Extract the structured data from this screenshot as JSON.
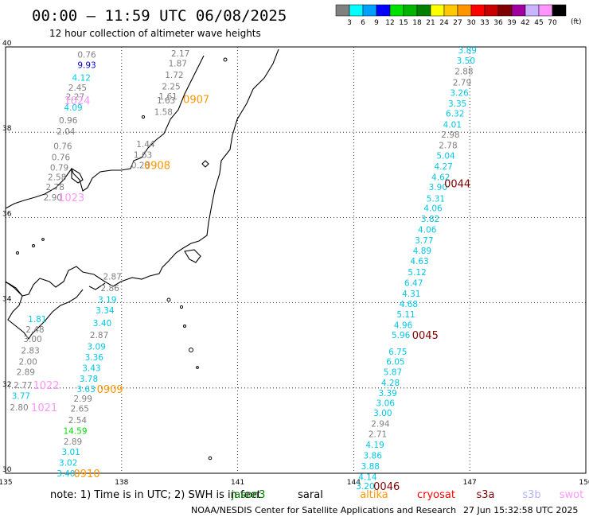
{
  "title": "00:00 – 11:59 UTC 06/08/2025",
  "subtitle": "12 hour collection of altimeter wave heights",
  "note": "note: 1) Time is in UTC; 2) SWH is in feet",
  "credit": "NOAA/NESDIS Center for Satellite Applications and Research",
  "generated": "27 Jun 15:32:58 UTC 2025",
  "colorbar": {
    "unit": "(ft)",
    "ticks": [
      "3",
      "6",
      "9",
      "12",
      "15",
      "18",
      "21",
      "24",
      "27",
      "30",
      "33",
      "36",
      "39",
      "42",
      "45",
      "70"
    ],
    "colors": [
      "#808080",
      "#00ffff",
      "#00a0ff",
      "#0000ff",
      "#00e000",
      "#00b400",
      "#008000",
      "#ffff00",
      "#ffc800",
      "#ff9600",
      "#ff0000",
      "#c80000",
      "#800000",
      "#a000a0",
      "#c8b4ff",
      "#ff96ff",
      "#000000"
    ]
  },
  "satellites": [
    {
      "name": "jason3",
      "color": "#008000"
    },
    {
      "name": "saral",
      "color": "#000000"
    },
    {
      "name": "altika",
      "color": "#ff9600"
    },
    {
      "name": "cryosat",
      "color": "#ff0000"
    },
    {
      "name": "s3a",
      "color": "#800000"
    },
    {
      "name": "s3b",
      "color": "#b4b4ff"
    },
    {
      "name": "swot",
      "color": "#ff96ff"
    }
  ],
  "chart_data": {
    "type": "scatter",
    "title": "00:00 – 11:59 UTC 06/08/2025",
    "subtitle": "12 hour collection of altimeter wave heights",
    "xlim": [
      135,
      150
    ],
    "ylim": [
      30,
      40
    ],
    "xticks": [
      "135",
      "138",
      "141",
      "144",
      "147",
      "150"
    ],
    "yticks": [
      "40",
      "38",
      "36",
      "34",
      "32",
      "30"
    ],
    "grid": true,
    "points": [
      {
        "lon": 137.1,
        "lat": 39.82,
        "v": "0.76",
        "c": "#808080"
      },
      {
        "lon": 137.1,
        "lat": 39.58,
        "v": "9.93",
        "c": "#0000c8"
      },
      {
        "lon": 136.96,
        "lat": 39.28,
        "v": "4.12",
        "c": "#00c8e6"
      },
      {
        "lon": 136.86,
        "lat": 39.05,
        "v": "2.45",
        "c": "#808080"
      },
      {
        "lon": 136.8,
        "lat": 38.83,
        "v": "2.27",
        "c": "#808080"
      },
      {
        "lon": 136.75,
        "lat": 38.58,
        "v": "4.09",
        "c": "#00c8e6"
      },
      {
        "lon": 136.62,
        "lat": 38.28,
        "v": "0.96",
        "c": "#808080"
      },
      {
        "lon": 136.56,
        "lat": 38.02,
        "v": "2.04",
        "c": "#808080"
      },
      {
        "lon": 136.48,
        "lat": 37.68,
        "v": "0.76",
        "c": "#808080"
      },
      {
        "lon": 136.43,
        "lat": 37.42,
        "v": "0.76",
        "c": "#808080"
      },
      {
        "lon": 136.39,
        "lat": 37.17,
        "v": "0.79",
        "c": "#808080"
      },
      {
        "lon": 136.33,
        "lat": 36.95,
        "v": "2.58",
        "c": "#808080"
      },
      {
        "lon": 136.28,
        "lat": 36.72,
        "v": "2.78",
        "c": "#808080"
      },
      {
        "lon": 136.22,
        "lat": 36.47,
        "v": "2.90",
        "c": "#808080"
      },
      {
        "lon": 139.52,
        "lat": 39.85,
        "v": "2.17",
        "c": "#808080"
      },
      {
        "lon": 139.45,
        "lat": 39.62,
        "v": "1.87",
        "c": "#808080"
      },
      {
        "lon": 139.36,
        "lat": 39.35,
        "v": "1.72",
        "c": "#808080"
      },
      {
        "lon": 139.28,
        "lat": 39.08,
        "v": "2.25",
        "c": "#808080"
      },
      {
        "lon": 139.2,
        "lat": 38.84,
        "v": "1.61",
        "c": "#808080"
      },
      {
        "lon": 139.15,
        "lat": 38.75,
        "v": "1.63",
        "c": "#808080"
      },
      {
        "lon": 139.08,
        "lat": 38.48,
        "v": "1.58",
        "c": "#808080"
      },
      {
        "lon": 138.62,
        "lat": 37.72,
        "v": "1.44",
        "c": "#808080"
      },
      {
        "lon": 138.55,
        "lat": 37.47,
        "v": "1.63",
        "c": "#808080"
      },
      {
        "lon": 138.49,
        "lat": 37.23,
        "v": "0.28",
        "c": "#808080"
      },
      {
        "lon": 137.76,
        "lat": 34.62,
        "v": "2.87",
        "c": "#808080"
      },
      {
        "lon": 137.7,
        "lat": 34.35,
        "v": "2.86",
        "c": "#808080"
      },
      {
        "lon": 137.63,
        "lat": 34.08,
        "v": "3.19",
        "c": "#00c8e6"
      },
      {
        "lon": 137.57,
        "lat": 33.82,
        "v": "3.34",
        "c": "#00c8e6"
      },
      {
        "lon": 137.5,
        "lat": 33.53,
        "v": "3.40",
        "c": "#00c8e6"
      },
      {
        "lon": 137.42,
        "lat": 33.25,
        "v": "2.87",
        "c": "#808080"
      },
      {
        "lon": 137.35,
        "lat": 32.98,
        "v": "3.09",
        "c": "#00c8e6"
      },
      {
        "lon": 137.29,
        "lat": 32.72,
        "v": "3.36",
        "c": "#00c8e6"
      },
      {
        "lon": 137.22,
        "lat": 32.47,
        "v": "3.43",
        "c": "#00c8e6"
      },
      {
        "lon": 137.15,
        "lat": 32.22,
        "v": "3.78",
        "c": "#00c8e6"
      },
      {
        "lon": 137.08,
        "lat": 31.98,
        "v": "3.63",
        "c": "#00c8e6"
      },
      {
        "lon": 137.0,
        "lat": 31.75,
        "v": "2.99",
        "c": "#808080"
      },
      {
        "lon": 136.92,
        "lat": 31.52,
        "v": "2.65",
        "c": "#808080"
      },
      {
        "lon": 136.86,
        "lat": 31.25,
        "v": "2.54",
        "c": "#808080"
      },
      {
        "lon": 136.8,
        "lat": 31.0,
        "v": "14.59",
        "c": "#00dc00"
      },
      {
        "lon": 136.74,
        "lat": 30.75,
        "v": "2.89",
        "c": "#808080"
      },
      {
        "lon": 136.69,
        "lat": 30.5,
        "v": "3.01",
        "c": "#00c8e6"
      },
      {
        "lon": 136.62,
        "lat": 30.25,
        "v": "3.02",
        "c": "#00c8e6"
      },
      {
        "lon": 136.56,
        "lat": 30.0,
        "v": "3.40",
        "c": "#00c8e6"
      },
      {
        "lon": 135.82,
        "lat": 33.62,
        "v": "1.81",
        "c": "#00c8e6"
      },
      {
        "lon": 135.76,
        "lat": 33.38,
        "v": "2.48",
        "c": "#808080"
      },
      {
        "lon": 135.7,
        "lat": 33.15,
        "v": "3.00",
        "c": "#808080"
      },
      {
        "lon": 135.64,
        "lat": 32.88,
        "v": "2.83",
        "c": "#808080"
      },
      {
        "lon": 135.58,
        "lat": 32.62,
        "v": "2.00",
        "c": "#808080"
      },
      {
        "lon": 135.52,
        "lat": 32.38,
        "v": "2.89",
        "c": "#808080"
      },
      {
        "lon": 135.45,
        "lat": 32.07,
        "v": "2.77",
        "c": "#808080"
      },
      {
        "lon": 135.4,
        "lat": 31.82,
        "v": "3.77",
        "c": "#00c8e6"
      },
      {
        "lon": 135.35,
        "lat": 31.55,
        "v": "2.80",
        "c": "#808080"
      },
      {
        "lon": 146.94,
        "lat": 39.93,
        "v": "3.89",
        "c": "#00c8e6"
      },
      {
        "lon": 146.9,
        "lat": 39.68,
        "v": "3.50",
        "c": "#00c8e6"
      },
      {
        "lon": 146.85,
        "lat": 39.43,
        "v": "2.88",
        "c": "#808080"
      },
      {
        "lon": 146.8,
        "lat": 39.17,
        "v": "2.79",
        "c": "#808080"
      },
      {
        "lon": 146.73,
        "lat": 38.93,
        "v": "3.26",
        "c": "#00c8e6"
      },
      {
        "lon": 146.68,
        "lat": 38.68,
        "v": "3.35",
        "c": "#00c8e6"
      },
      {
        "lon": 146.62,
        "lat": 38.44,
        "v": "6.32",
        "c": "#00c8e6"
      },
      {
        "lon": 146.55,
        "lat": 38.18,
        "v": "4.01",
        "c": "#00c8e6"
      },
      {
        "lon": 146.5,
        "lat": 37.95,
        "v": "2.98",
        "c": "#808080"
      },
      {
        "lon": 146.44,
        "lat": 37.7,
        "v": "2.78",
        "c": "#808080"
      },
      {
        "lon": 146.38,
        "lat": 37.45,
        "v": "5.04",
        "c": "#00c8e6"
      },
      {
        "lon": 146.32,
        "lat": 37.2,
        "v": "4.27",
        "c": "#00c8e6"
      },
      {
        "lon": 146.25,
        "lat": 36.95,
        "v": "4.62",
        "c": "#00c8e6"
      },
      {
        "lon": 146.18,
        "lat": 36.72,
        "v": "3.90",
        "c": "#00c8e6"
      },
      {
        "lon": 146.12,
        "lat": 36.45,
        "v": "5.31",
        "c": "#00c8e6"
      },
      {
        "lon": 146.05,
        "lat": 36.22,
        "v": "4.06",
        "c": "#00c8e6"
      },
      {
        "lon": 145.98,
        "lat": 35.97,
        "v": "3.82",
        "c": "#00c8e6"
      },
      {
        "lon": 145.9,
        "lat": 35.72,
        "v": "4.06",
        "c": "#00c8e6"
      },
      {
        "lon": 145.82,
        "lat": 35.47,
        "v": "3.77",
        "c": "#00c8e6"
      },
      {
        "lon": 145.77,
        "lat": 35.22,
        "v": "4.89",
        "c": "#00c8e6"
      },
      {
        "lon": 145.7,
        "lat": 34.98,
        "v": "4.63",
        "c": "#00c8e6"
      },
      {
        "lon": 145.64,
        "lat": 34.72,
        "v": "5.12",
        "c": "#00c8e6"
      },
      {
        "lon": 145.55,
        "lat": 34.47,
        "v": "6.47",
        "c": "#00c8e6"
      },
      {
        "lon": 145.49,
        "lat": 34.22,
        "v": "4.31",
        "c": "#00c8e6"
      },
      {
        "lon": 145.42,
        "lat": 33.97,
        "v": "4.68",
        "c": "#00c8e6"
      },
      {
        "lon": 145.35,
        "lat": 33.73,
        "v": "5.11",
        "c": "#00c8e6"
      },
      {
        "lon": 145.28,
        "lat": 33.48,
        "v": "4.96",
        "c": "#00c8e6"
      },
      {
        "lon": 145.22,
        "lat": 33.25,
        "v": "5.96",
        "c": "#00c8e6"
      },
      {
        "lon": 145.14,
        "lat": 32.85,
        "v": "6.75",
        "c": "#00c8e6"
      },
      {
        "lon": 145.08,
        "lat": 32.62,
        "v": "6.05",
        "c": "#00c8e6"
      },
      {
        "lon": 145.01,
        "lat": 32.38,
        "v": "5.87",
        "c": "#00c8e6"
      },
      {
        "lon": 144.95,
        "lat": 32.13,
        "v": "4.28",
        "c": "#00c8e6"
      },
      {
        "lon": 144.88,
        "lat": 31.88,
        "v": "3.39",
        "c": "#00c8e6"
      },
      {
        "lon": 144.82,
        "lat": 31.65,
        "v": "3.06",
        "c": "#00c8e6"
      },
      {
        "lon": 144.75,
        "lat": 31.42,
        "v": "3.00",
        "c": "#00c8e6"
      },
      {
        "lon": 144.69,
        "lat": 31.17,
        "v": "2.94",
        "c": "#808080"
      },
      {
        "lon": 144.62,
        "lat": 30.92,
        "v": "2.71",
        "c": "#808080"
      },
      {
        "lon": 144.55,
        "lat": 30.67,
        "v": "4.19",
        "c": "#00c8e6"
      },
      {
        "lon": 144.49,
        "lat": 30.42,
        "v": "3.86",
        "c": "#00c8e6"
      },
      {
        "lon": 144.43,
        "lat": 30.17,
        "v": "3.88",
        "c": "#00c8e6"
      },
      {
        "lon": 144.36,
        "lat": 29.92,
        "v": "4.14",
        "c": "#00c8e6"
      },
      {
        "lon": 144.3,
        "lat": 29.7,
        "v": "3.20",
        "c": "#00c8e6"
      }
    ],
    "passes": [
      {
        "lon": 136.85,
        "lat": 38.75,
        "label": "1024",
        "c": "#ff96ff"
      },
      {
        "lon": 139.93,
        "lat": 38.78,
        "label": "0907",
        "c": "#ff9600"
      },
      {
        "lon": 138.92,
        "lat": 37.23,
        "label": "0908",
        "c": "#ff9600"
      },
      {
        "lon": 136.7,
        "lat": 36.47,
        "label": "1023",
        "c": "#ff96ff"
      },
      {
        "lon": 146.68,
        "lat": 36.8,
        "label": "0044",
        "c": "#800000"
      },
      {
        "lon": 136.05,
        "lat": 32.07,
        "label": "1022",
        "c": "#ff96ff"
      },
      {
        "lon": 137.7,
        "lat": 31.98,
        "label": "0909",
        "c": "#ff9600"
      },
      {
        "lon": 136.0,
        "lat": 31.55,
        "label": "1021",
        "c": "#ff96ff"
      },
      {
        "lon": 137.1,
        "lat": 30.0,
        "label": "0910",
        "c": "#ff9600"
      },
      {
        "lon": 145.85,
        "lat": 33.25,
        "label": "0045",
        "c": "#800000"
      },
      {
        "lon": 144.85,
        "lat": 29.7,
        "label": "0046",
        "c": "#800000"
      }
    ]
  }
}
